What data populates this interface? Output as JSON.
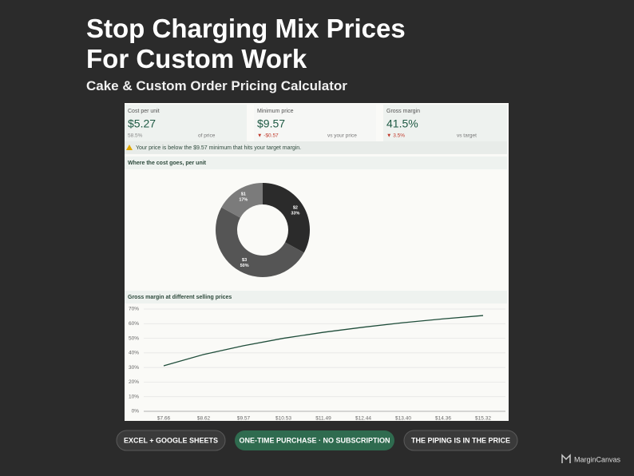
{
  "header": {
    "title": [
      "Stop Charging Mix Prices",
      "For Custom Work"
    ],
    "subtitle": "Cake & Custom Order Pricing Calculator"
  },
  "kpis": [
    {
      "label": "Cost per unit",
      "value": "$5.27",
      "note": "58.5%",
      "note_label": "of price"
    },
    {
      "label": "Minimum price",
      "value": "$9.57",
      "note": "▼ -$0.57",
      "note_label": "vs your price"
    },
    {
      "label": "Gross margin",
      "value": "41.5%",
      "note": "▼ 3.5%",
      "note_label": "vs target"
    }
  ],
  "warning": "Your price is below the $9.57 minimum that hits your target margin.",
  "chart_data": [
    {
      "type": "pie",
      "title": "Where the cost goes, per unit",
      "categories": [
        "$2",
        "$3",
        "$1"
      ],
      "values": [
        33,
        50,
        17
      ],
      "value_labels": [
        "33%",
        "50%",
        "17%"
      ],
      "colors": [
        "#2b2b2b",
        "#555555",
        "#7b7b7b"
      ]
    },
    {
      "type": "line",
      "title": "Gross margin at different selling prices",
      "categories": [
        "$7.66",
        "$8.62",
        "$9.57",
        "$10.53",
        "$11.49",
        "$12.44",
        "$13.40",
        "$14.36",
        "$15.32"
      ],
      "values": [
        31.2,
        38.9,
        44.9,
        50.0,
        54.1,
        57.6,
        60.7,
        63.3,
        65.6
      ],
      "color": "#1f4d3a",
      "ylim": [
        0,
        70
      ],
      "yticks": [
        {
          "value": 0,
          "label": "0%"
        },
        {
          "value": 10,
          "label": "10%"
        },
        {
          "value": 20,
          "label": "20%"
        },
        {
          "value": 30,
          "label": "30%"
        },
        {
          "value": 40,
          "label": "40%"
        },
        {
          "value": 50,
          "label": "50%"
        },
        {
          "value": 60,
          "label": "60%"
        },
        {
          "value": 70,
          "label": "70%"
        }
      ],
      "grid": true
    }
  ],
  "buttons": [
    "EXCEL + GOOGLE SHEETS",
    "ONE-TIME PURCHASE · NO SUBSCRIPTION",
    "THE PIPING IS IN THE PRICE"
  ],
  "brand": "MarginCanvas"
}
